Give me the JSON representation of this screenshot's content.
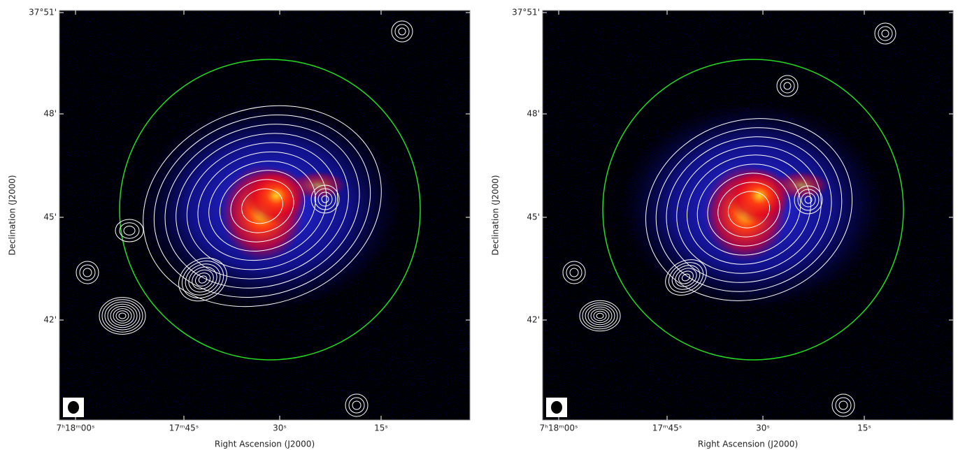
{
  "panels": [
    {
      "x_axis": {
        "label": "Right Ascension (J2000)",
        "ticks": [
          "7ʰ18ᵐ00ˢ",
          "17ᵐ45ˢ",
          "30ˢ",
          "15ˢ"
        ]
      },
      "y_axis": {
        "label": "Declination (J2000)",
        "ticks": [
          "37°51'",
          "48'",
          "45'",
          "42'"
        ]
      }
    },
    {
      "x_axis": {
        "label": "Right Ascension (J2000)",
        "ticks": [
          "7ʰ18ᵐ00ˢ",
          "17ᵐ45ˢ",
          "30ˢ",
          "15ˢ"
        ]
      },
      "y_axis": {
        "label": "Declination (J2000)",
        "ticks": [
          "37°51'",
          "48'",
          "45'",
          "42'"
        ]
      }
    }
  ]
}
